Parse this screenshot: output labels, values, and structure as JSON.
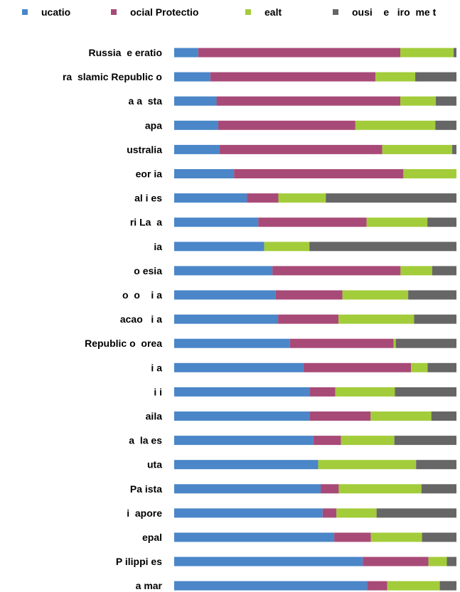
{
  "chart_data": {
    "type": "bar",
    "orientation": "horizontal",
    "stacked": true,
    "normalized": true,
    "title": "",
    "xlabel": "",
    "ylabel": "",
    "xlim": [
      0,
      100
    ],
    "grid": false,
    "legend_position": "top",
    "categories": [
      "Russia  e eratio",
      "ra  slamic Republic o",
      "a a  sta",
      "apa",
      "ustralia",
      "eor ia",
      "al i es",
      "ri La  a",
      "ia",
      "o esia",
      "o  o    i a",
      "acao   i a",
      "Republic o  orea",
      "i a",
      "i i",
      "aila",
      "a  la es",
      "uta",
      "Pa ista",
      "i  apore",
      "epal",
      "P ilippi es",
      "a mar"
    ],
    "series": [
      {
        "name": "ucatio",
        "color": "#4a86c8",
        "values": [
          8.5,
          12.8,
          15.0,
          15.6,
          16.1,
          21.2,
          25.8,
          29.8,
          31.9,
          34.8,
          36.0,
          36.8,
          41.0,
          45.8,
          48.1,
          48.1,
          49.3,
          51.0,
          51.9,
          52.6,
          56.7,
          66.8,
          68.3
        ]
      },
      {
        "name": "ocial Protectio",
        "color": "#a84a78",
        "values": [
          71.6,
          58.5,
          65.1,
          48.6,
          57.6,
          60.0,
          11.1,
          38.4,
          0.0,
          45.4,
          23.6,
          21.4,
          36.7,
          38.1,
          9.0,
          21.5,
          9.8,
          0.0,
          6.4,
          4.9,
          13.0,
          23.3,
          7.2
        ]
      },
      {
        "name": "ealt",
        "color": "#a3cc3a",
        "values": [
          18.9,
          14.1,
          12.6,
          28.3,
          24.8,
          18.8,
          16.8,
          21.5,
          16.0,
          11.2,
          23.3,
          26.8,
          0.8,
          5.9,
          21.1,
          21.5,
          18.9,
          34.7,
          29.3,
          14.2,
          18.1,
          6.5,
          18.6
        ]
      },
      {
        "name": "ousi    e   iro  me t",
        "color": "#666666",
        "values": [
          1.0,
          14.6,
          7.3,
          7.5,
          1.5,
          0.0,
          46.3,
          10.3,
          52.1,
          8.6,
          17.1,
          15.0,
          21.5,
          10.2,
          21.8,
          8.9,
          22.0,
          14.3,
          12.4,
          28.3,
          12.2,
          3.4,
          5.9
        ]
      }
    ]
  }
}
